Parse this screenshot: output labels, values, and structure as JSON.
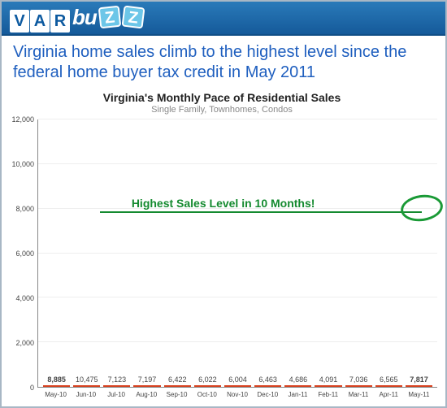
{
  "logo": {
    "var": [
      "V",
      "A",
      "R"
    ],
    "buzz_prefix": "bu",
    "z1": "Z",
    "z2": "Z"
  },
  "headline": "Virginia home sales climb to the highest level since the federal home buyer tax credit in May 2011",
  "chart": {
    "type": "bar",
    "title": "Virginia's Monthly Pace of Residential Sales",
    "subtitle": "Single Family, Townhomes, Condos",
    "categories": [
      "May-10",
      "Jun-10",
      "Jul-10",
      "Aug-10",
      "Sep-10",
      "Oct-10",
      "Nov-10",
      "Dec-10",
      "Jan-11",
      "Feb-11",
      "Mar-11",
      "Apr-11",
      "May-11"
    ],
    "values": [
      8885,
      10475,
      7123,
      7197,
      6422,
      6022,
      6004,
      6463,
      4686,
      4091,
      7036,
      6565,
      7817
    ],
    "value_bold": [
      true,
      false,
      false,
      false,
      false,
      false,
      false,
      false,
      false,
      false,
      false,
      false,
      true
    ],
    "bar_color": "#f45c3a",
    "bar_border_color": "#d7411f",
    "ylim": [
      0,
      12000
    ],
    "ytick_step": 2000,
    "yticks": [
      0,
      2000,
      4000,
      6000,
      8000,
      10000,
      12000
    ],
    "ytick_labels": [
      "0",
      "2,000",
      "4,000",
      "6,000",
      "8,000",
      "10,000",
      "12,000"
    ],
    "grid_color": "#eeeeee",
    "axis_color": "#888888",
    "background_color": "#ffffff",
    "title_fontsize": 14,
    "subtitle_fontsize": 11,
    "subtitle_color": "#888888",
    "tick_fontsize": 9,
    "bar_width": 0.78,
    "annotation": {
      "text": "Highest Sales Level in 10 Months!",
      "color": "#148a2f",
      "fontsize": 14,
      "line_y": 7817,
      "line_from_cat_index": 2,
      "line_to_cat_index": 12,
      "oval_cat_index": 12
    }
  }
}
